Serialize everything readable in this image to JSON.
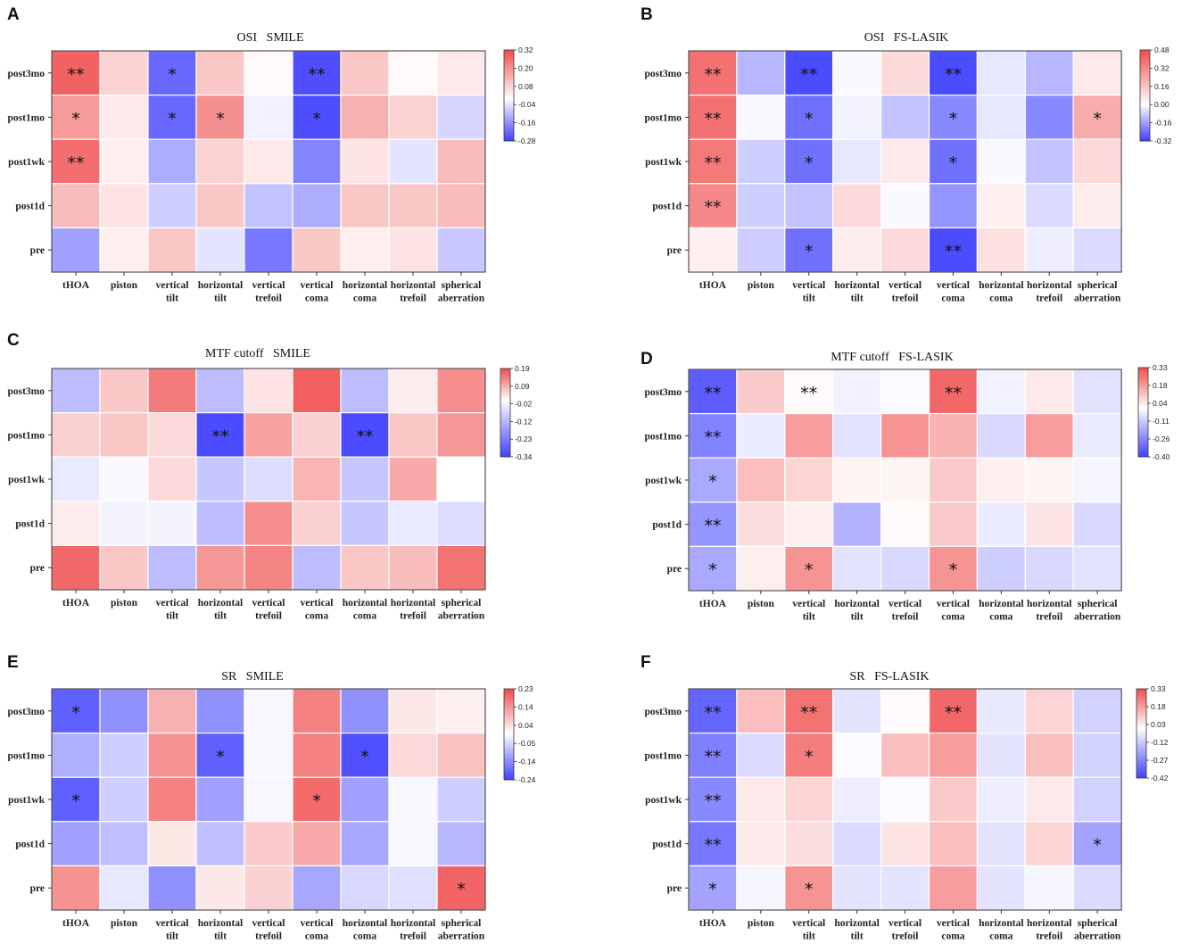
{
  "chart_data": [
    {
      "type": "heatmap",
      "panel_label": "A",
      "title": "OSI   SMILE",
      "rows": [
        "post3mo",
        "post1mo",
        "post1wk",
        "post1d",
        "pre"
      ],
      "columns": [
        [
          "tHOA"
        ],
        [
          "piston"
        ],
        [
          "vertical",
          "tilt"
        ],
        [
          "horizontal",
          "tilt"
        ],
        [
          "vertical",
          "trefoil"
        ],
        [
          "vertical",
          "coma"
        ],
        [
          "horizontal",
          "coma"
        ],
        [
          "horizontal",
          "trefoil"
        ],
        [
          "spherical",
          "aberration"
        ]
      ],
      "colorbar_ticks": [
        "0.32",
        "0.20",
        "0.08",
        "-0.04",
        "-0.16",
        "-0.28"
      ],
      "vmin": -0.28,
      "vmax": 0.32,
      "values": [
        [
          0.28,
          0.08,
          -0.22,
          0.1,
          0.01,
          -0.26,
          0.1,
          0.01,
          0.04
        ],
        [
          0.18,
          0.04,
          -0.22,
          0.2,
          -0.02,
          -0.26,
          0.14,
          0.08,
          -0.06
        ],
        [
          0.26,
          0.03,
          -0.12,
          0.08,
          0.04,
          -0.18,
          0.05,
          -0.04,
          0.12
        ],
        [
          0.12,
          0.05,
          -0.07,
          0.1,
          -0.09,
          -0.12,
          0.1,
          0.1,
          0.12
        ],
        [
          -0.14,
          0.03,
          0.1,
          -0.04,
          -0.2,
          0.1,
          0.03,
          0.05,
          -0.08
        ]
      ],
      "significance": [
        [
          "**",
          "",
          "*",
          "",
          "",
          "**",
          "",
          "",
          ""
        ],
        [
          "*",
          "",
          "*",
          "*",
          "",
          "*",
          "",
          "",
          ""
        ],
        [
          "**",
          "",
          "",
          "",
          "",
          "",
          "",
          "",
          ""
        ],
        [
          "",
          "",
          "",
          "",
          "",
          "",
          "",
          "",
          ""
        ],
        [
          "",
          "",
          "",
          "",
          "",
          "",
          "",
          "",
          ""
        ]
      ]
    },
    {
      "type": "heatmap",
      "panel_label": "B",
      "title": "OSI   FS-LASIK",
      "rows": [
        "post3mo",
        "post1mo",
        "post1wk",
        "post1d",
        "pre"
      ],
      "columns": [
        [
          "tHOA"
        ],
        [
          "piston"
        ],
        [
          "vertical",
          "tilt"
        ],
        [
          "horizontal",
          "tilt"
        ],
        [
          "vertical",
          "trefoil"
        ],
        [
          "vertical",
          "coma"
        ],
        [
          "horizontal",
          "coma"
        ],
        [
          "horizontal",
          "trefoil"
        ],
        [
          "spherical",
          "aberration"
        ]
      ],
      "colorbar_ticks": [
        "0.48",
        "0.32",
        "0.16",
        "0.00",
        "-0.16",
        "-0.32"
      ],
      "vmin": -0.32,
      "vmax": 0.48,
      "values": [
        [
          0.38,
          -0.12,
          -0.3,
          -0.01,
          0.1,
          -0.3,
          -0.04,
          -0.12,
          0.06
        ],
        [
          0.38,
          -0.01,
          -0.24,
          -0.02,
          -0.1,
          -0.2,
          -0.04,
          -0.2,
          0.22
        ],
        [
          0.36,
          -0.08,
          -0.24,
          -0.04,
          0.06,
          -0.24,
          -0.01,
          -0.1,
          0.1
        ],
        [
          0.32,
          -0.08,
          -0.1,
          0.1,
          -0.01,
          -0.18,
          0.04,
          -0.06,
          0.05
        ],
        [
          0.04,
          -0.08,
          -0.24,
          0.05,
          0.1,
          -0.3,
          0.08,
          -0.03,
          -0.06
        ]
      ],
      "significance": [
        [
          "**",
          "",
          "**",
          "",
          "",
          "**",
          "",
          "",
          ""
        ],
        [
          "**",
          "",
          "*",
          "",
          "",
          "*",
          "",
          "",
          "*"
        ],
        [
          "**",
          "",
          "*",
          "",
          "",
          "*",
          "",
          "",
          ""
        ],
        [
          "**",
          "",
          "",
          "",
          "",
          "",
          "",
          "",
          ""
        ],
        [
          "",
          "",
          "*",
          "",
          "",
          "**",
          "",
          "",
          ""
        ]
      ]
    },
    {
      "type": "heatmap",
      "panel_label": "C",
      "title": "MTF cutoff   SMILE",
      "rows": [
        "post3mo",
        "post1mo",
        "post1wk",
        "post1d",
        "pre"
      ],
      "columns": [
        [
          "tHOA"
        ],
        [
          "piston"
        ],
        [
          "vertical",
          "tilt"
        ],
        [
          "horizontal",
          "tilt"
        ],
        [
          "vertical",
          "trefoil"
        ],
        [
          "vertical",
          "coma"
        ],
        [
          "horizontal",
          "coma"
        ],
        [
          "horizontal",
          "trefoil"
        ],
        [
          "spherical",
          "aberration"
        ]
      ],
      "colorbar_ticks": [
        "0.19",
        "0.09",
        "-0.02",
        "-0.12",
        "-0.23",
        "-0.34"
      ],
      "vmin": -0.34,
      "vmax": 0.19,
      "values": [
        [
          -0.12,
          0.06,
          0.14,
          -0.12,
          0.03,
          0.17,
          -0.12,
          0.02,
          0.12
        ],
        [
          0.05,
          0.06,
          0.04,
          -0.32,
          0.1,
          0.05,
          -0.32,
          0.06,
          0.11
        ],
        [
          -0.04,
          -0.01,
          0.04,
          -0.1,
          -0.06,
          0.08,
          -0.1,
          0.09,
          0.0
        ],
        [
          0.02,
          -0.02,
          -0.02,
          -0.12,
          0.12,
          0.05,
          -0.1,
          -0.04,
          -0.06
        ],
        [
          0.16,
          0.06,
          -0.12,
          0.11,
          0.13,
          -0.12,
          0.06,
          0.07,
          0.15
        ]
      ],
      "significance": [
        [
          "",
          "",
          "",
          "",
          "",
          "",
          "",
          "",
          ""
        ],
        [
          "",
          "",
          "",
          "**",
          "",
          "",
          "**",
          "",
          ""
        ],
        [
          "",
          "",
          "",
          "",
          "",
          "",
          "",
          "",
          ""
        ],
        [
          "",
          "",
          "",
          "",
          "",
          "",
          "",
          "",
          ""
        ],
        [
          "",
          "",
          "",
          "",
          "",
          "",
          "",
          "",
          ""
        ]
      ]
    },
    {
      "type": "heatmap",
      "panel_label": "D",
      "title": "MTF cutoff   FS-LASIK",
      "rows": [
        "post3mo",
        "post1mo",
        "post1wk",
        "post1d",
        "pre"
      ],
      "columns": [
        [
          "tHOA"
        ],
        [
          "piston"
        ],
        [
          "vertical",
          "tilt"
        ],
        [
          "horizontal",
          "tilt"
        ],
        [
          "vertical",
          "trefoil"
        ],
        [
          "vertical",
          "coma"
        ],
        [
          "horizontal",
          "coma"
        ],
        [
          "horizontal",
          "trefoil"
        ],
        [
          "spherical",
          "aberration"
        ]
      ],
      "colorbar_ticks": [
        "0.33",
        "0.18",
        "0.04",
        "-0.11",
        "-0.26",
        "-0.40"
      ],
      "vmin": -0.4,
      "vmax": 0.33,
      "values": [
        [
          -0.34,
          0.1,
          0.01,
          -0.03,
          -0.01,
          0.28,
          -0.03,
          0.04,
          -0.06
        ],
        [
          -0.26,
          -0.04,
          0.18,
          -0.06,
          0.2,
          0.14,
          -0.08,
          0.18,
          -0.04
        ],
        [
          -0.18,
          0.12,
          0.08,
          0.02,
          0.02,
          0.1,
          0.03,
          0.02,
          -0.02
        ],
        [
          -0.22,
          0.06,
          0.03,
          -0.16,
          0.01,
          0.1,
          -0.04,
          0.05,
          -0.08
        ],
        [
          -0.18,
          0.03,
          0.2,
          -0.06,
          -0.08,
          0.2,
          -0.1,
          -0.08,
          -0.06
        ]
      ],
      "significance": [
        [
          "**",
          "",
          "**",
          "",
          "",
          "**",
          "",
          "",
          ""
        ],
        [
          "**",
          "",
          "",
          "",
          "",
          "",
          "",
          "",
          ""
        ],
        [
          "*",
          "",
          "",
          "",
          "",
          "",
          "",
          "",
          ""
        ],
        [
          "**",
          "",
          "",
          "",
          "",
          "",
          "",
          "",
          ""
        ],
        [
          "*",
          "",
          "*",
          "",
          "",
          "*",
          "",
          "",
          ""
        ]
      ]
    },
    {
      "type": "heatmap",
      "panel_label": "E",
      "title": "SR   SMILE",
      "rows": [
        "post3mo",
        "post1mo",
        "post1wk",
        "post1d",
        "pre"
      ],
      "columns": [
        [
          "tHOA"
        ],
        [
          "piston"
        ],
        [
          "vertical",
          "tilt"
        ],
        [
          "horizontal",
          "tilt"
        ],
        [
          "vertical",
          "trefoil"
        ],
        [
          "vertical",
          "coma"
        ],
        [
          "horizontal",
          "coma"
        ],
        [
          "horizontal",
          "trefoil"
        ],
        [
          "spherical",
          "aberration"
        ]
      ],
      "colorbar_ticks": [
        "0.23",
        "0.14",
        "0.04",
        "-0.05",
        "-0.14",
        "-0.24"
      ],
      "vmin": -0.24,
      "vmax": 0.23,
      "values": [
        [
          -0.2,
          -0.14,
          0.1,
          -0.14,
          -0.01,
          0.16,
          -0.14,
          0.03,
          0.02
        ],
        [
          -0.1,
          -0.06,
          0.14,
          -0.2,
          -0.01,
          0.16,
          -0.22,
          0.05,
          0.08
        ],
        [
          -0.2,
          -0.06,
          0.16,
          -0.12,
          -0.01,
          0.19,
          -0.12,
          -0.01,
          -0.06
        ],
        [
          -0.12,
          -0.08,
          0.03,
          -0.08,
          0.07,
          0.11,
          -0.11,
          -0.01,
          -0.09
        ],
        [
          0.14,
          -0.03,
          -0.14,
          0.03,
          0.06,
          -0.11,
          -0.05,
          -0.04,
          0.2
        ]
      ],
      "significance": [
        [
          "*",
          "",
          "",
          "",
          "",
          "",
          "",
          "",
          ""
        ],
        [
          "",
          "",
          "",
          "*",
          "",
          "",
          "*",
          "",
          ""
        ],
        [
          "*",
          "",
          "",
          "",
          "",
          "*",
          "",
          "",
          ""
        ],
        [
          "",
          "",
          "",
          "",
          "",
          "",
          "",
          "",
          ""
        ],
        [
          "",
          "",
          "",
          "",
          "",
          "",
          "",
          "",
          "*"
        ]
      ]
    },
    {
      "type": "heatmap",
      "panel_label": "F",
      "title": "SR   FS-LASIK",
      "rows": [
        "post3mo",
        "post1mo",
        "post1wk",
        "post1d",
        "pre"
      ],
      "columns": [
        [
          "tHOA"
        ],
        [
          "piston"
        ],
        [
          "vertical",
          "tilt"
        ],
        [
          "horizontal",
          "tilt"
        ],
        [
          "vertical",
          "trefoil"
        ],
        [
          "vertical",
          "coma"
        ],
        [
          "horizontal",
          "coma"
        ],
        [
          "horizontal",
          "trefoil"
        ],
        [
          "spherical",
          "aberration"
        ]
      ],
      "colorbar_ticks": [
        "0.33",
        "0.18",
        "0.03",
        "-0.12",
        "-0.27",
        "-0.42"
      ],
      "vmin": -0.42,
      "vmax": 0.33,
      "values": [
        [
          -0.34,
          0.12,
          0.26,
          -0.06,
          0.01,
          0.28,
          -0.05,
          0.08,
          -0.1
        ],
        [
          -0.28,
          -0.08,
          0.24,
          -0.01,
          0.12,
          0.18,
          -0.06,
          0.12,
          -0.1
        ],
        [
          -0.26,
          0.04,
          0.08,
          -0.04,
          -0.01,
          0.1,
          -0.04,
          0.04,
          -0.1
        ],
        [
          -0.3,
          0.04,
          0.06,
          -0.08,
          0.05,
          0.12,
          -0.06,
          0.08,
          -0.2
        ],
        [
          -0.2,
          -0.02,
          0.2,
          -0.06,
          -0.06,
          0.18,
          -0.06,
          -0.02,
          -0.08
        ]
      ],
      "significance": [
        [
          "**",
          "",
          "**",
          "",
          "",
          "**",
          "",
          "",
          ""
        ],
        [
          "**",
          "",
          "*",
          "",
          "",
          "",
          "",
          "",
          ""
        ],
        [
          "**",
          "",
          "",
          "",
          "",
          "",
          "",
          "",
          ""
        ],
        [
          "**",
          "",
          "",
          "",
          "",
          "",
          "",
          "",
          "*"
        ],
        [
          "*",
          "",
          "*",
          "",
          "",
          "",
          "",
          "",
          ""
        ]
      ]
    }
  ],
  "colors": {
    "low": "#4040ff",
    "mid": "#ffffff",
    "high": "#f04c4c",
    "significance_mark": "#111111"
  }
}
